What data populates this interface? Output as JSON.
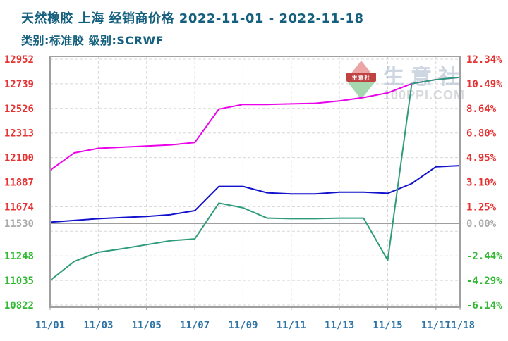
{
  "header": {
    "title": "天然橡胶 上海 经销商价格 2022-11-01 - 2022-11-18",
    "subtitle": "类别:标准胶 级别:SCRWF"
  },
  "watermark": {
    "brand": "生意社",
    "domain": "100PPI.COM",
    "ribbon_text": "生意社"
  },
  "chart_data": {
    "type": "line",
    "title": "天然橡胶 上海 经销商价格 2022-11-01 - 2022-11-18",
    "subtitle": "类别:标准胶 级别:SCRWF",
    "x": [
      "11/01",
      "11/02",
      "11/03",
      "11/04",
      "11/05",
      "11/06",
      "11/07",
      "11/08",
      "11/09",
      "11/10",
      "11/11",
      "11/12",
      "11/13",
      "11/14",
      "11/15",
      "11/16",
      "11/17",
      "11/18"
    ],
    "x_axis_label_indices": [
      0,
      2,
      4,
      6,
      8,
      10,
      12,
      14,
      16,
      17
    ],
    "v_gridline_indices": [
      2,
      4,
      6,
      8,
      10,
      12,
      14,
      16
    ],
    "ylim": [
      10822,
      12952
    ],
    "grid_on": true,
    "legend_position": "none",
    "baseline": {
      "value": 11530,
      "price_label": "11530",
      "pct_label": "0.00%",
      "color": "#aaaaaa"
    },
    "y_ticks": [
      {
        "value": 12952,
        "price": "12952",
        "pct": "12.34%",
        "color": "#e53333"
      },
      {
        "value": 12739,
        "price": "12739",
        "pct": "10.49%",
        "color": "#e53333"
      },
      {
        "value": 12526,
        "price": "12526",
        "pct": "8.64%",
        "color": "#e53333"
      },
      {
        "value": 12313,
        "price": "12313",
        "pct": "6.80%",
        "color": "#e53333"
      },
      {
        "value": 12100,
        "price": "12100",
        "pct": "4.95%",
        "color": "#e53333"
      },
      {
        "value": 11887,
        "price": "11887",
        "pct": "3.10%",
        "color": "#e53333"
      },
      {
        "value": 11674,
        "price": "11674",
        "pct": "1.25%",
        "color": "#e53333"
      },
      {
        "value": 11461,
        "price": "",
        "pct": "",
        "color": "#e53333"
      },
      {
        "value": 11248,
        "price": "11248",
        "pct": "-2.44%",
        "color": "#33b833"
      },
      {
        "value": 11035,
        "price": "11035",
        "pct": "-4.29%",
        "color": "#33b833"
      },
      {
        "value": 10822,
        "price": "10822",
        "pct": "-6.14%",
        "color": "#33b833"
      }
    ],
    "series": [
      {
        "name": "high-price-line",
        "color": "#ea00ea",
        "values": [
          11990,
          12140,
          12180,
          12190,
          12200,
          12210,
          12230,
          12520,
          12560,
          12560,
          12565,
          12570,
          12590,
          12620,
          12660,
          12740,
          12775,
          12795
        ]
      },
      {
        "name": "mainstream-price-line",
        "color": "#1212cc",
        "values": [
          11540,
          11555,
          11570,
          11580,
          11590,
          11605,
          11640,
          11850,
          11850,
          11795,
          11785,
          11785,
          11800,
          11800,
          11790,
          11875,
          12020,
          12030
        ]
      },
      {
        "name": "low-price-line",
        "color": "#2e9c7c",
        "values": [
          11035,
          11200,
          11280,
          11310,
          11345,
          11380,
          11395,
          11705,
          11665,
          11575,
          11570,
          11570,
          11575,
          11575,
          11210,
          12740,
          12775,
          12795
        ]
      }
    ],
    "axis_colors": {
      "x_label": "#2e74a5"
    },
    "grid_color": "#d8d8d8",
    "frame_color": "#a0a0a0"
  }
}
